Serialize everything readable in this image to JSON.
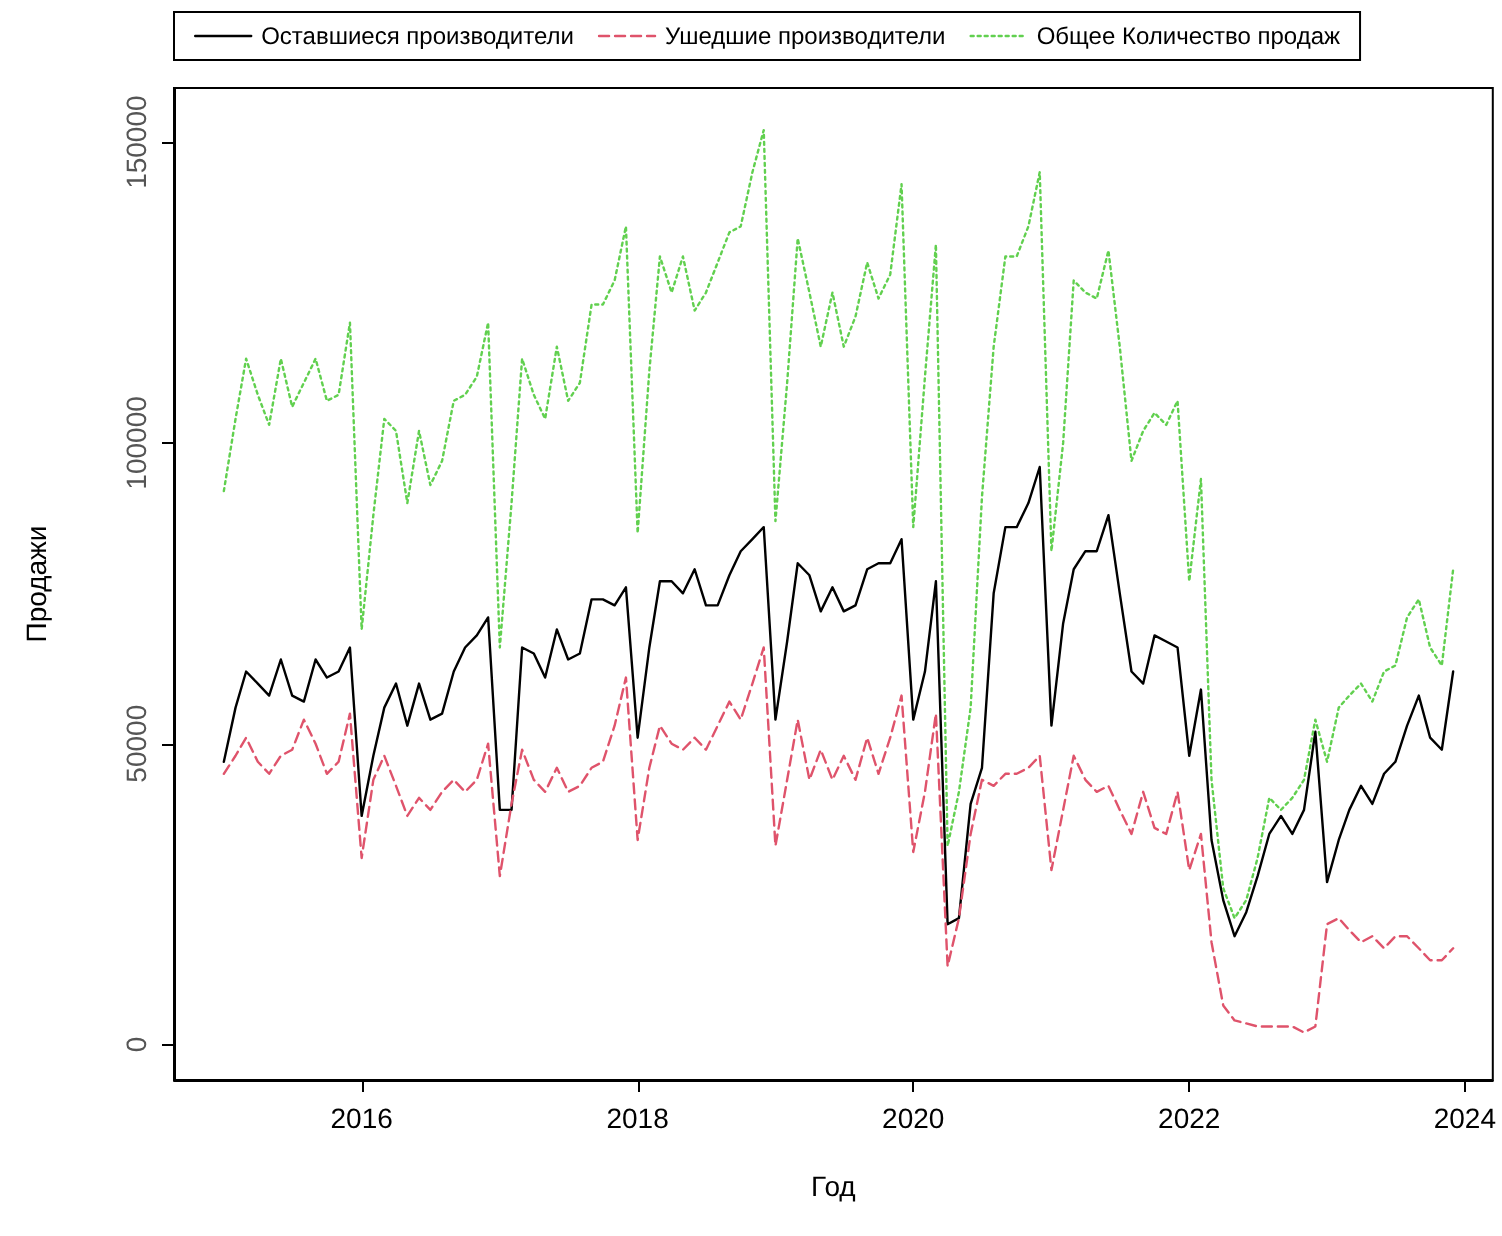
{
  "chart_data": {
    "type": "line",
    "xlabel": "Год",
    "ylabel": "Продажи",
    "x": [
      "2015-01",
      "2015-02",
      "2015-03",
      "2015-04",
      "2015-05",
      "2015-06",
      "2015-07",
      "2015-08",
      "2015-09",
      "2015-10",
      "2015-11",
      "2015-12",
      "2016-01",
      "2016-02",
      "2016-03",
      "2016-04",
      "2016-05",
      "2016-06",
      "2016-07",
      "2016-08",
      "2016-09",
      "2016-10",
      "2016-11",
      "2016-12",
      "2017-01",
      "2017-02",
      "2017-03",
      "2017-04",
      "2017-05",
      "2017-06",
      "2017-07",
      "2017-08",
      "2017-09",
      "2017-10",
      "2017-11",
      "2017-12",
      "2018-01",
      "2018-02",
      "2018-03",
      "2018-04",
      "2018-05",
      "2018-06",
      "2018-07",
      "2018-08",
      "2018-09",
      "2018-10",
      "2018-11",
      "2018-12",
      "2019-01",
      "2019-02",
      "2019-03",
      "2019-04",
      "2019-05",
      "2019-06",
      "2019-07",
      "2019-08",
      "2019-09",
      "2019-10",
      "2019-11",
      "2019-12",
      "2020-01",
      "2020-02",
      "2020-03",
      "2020-04",
      "2020-05",
      "2020-06",
      "2020-07",
      "2020-08",
      "2020-09",
      "2020-10",
      "2020-11",
      "2020-12",
      "2021-01",
      "2021-02",
      "2021-03",
      "2021-04",
      "2021-05",
      "2021-06",
      "2021-07",
      "2021-08",
      "2021-09",
      "2021-10",
      "2021-11",
      "2021-12",
      "2022-01",
      "2022-02",
      "2022-03",
      "2022-04",
      "2022-05",
      "2022-06",
      "2022-07",
      "2022-08",
      "2022-09",
      "2022-10",
      "2022-11",
      "2022-12",
      "2023-01",
      "2023-02",
      "2023-03",
      "2023-04",
      "2023-05",
      "2023-06",
      "2023-07",
      "2023-08",
      "2023-09",
      "2023-10",
      "2023-11",
      "2023-12"
    ],
    "series": [
      {
        "name": "Оставшиеся производители",
        "color": "#000000",
        "line_style": "solid",
        "values": [
          47000,
          56000,
          62000,
          60000,
          58000,
          64000,
          58000,
          57000,
          64000,
          61000,
          62000,
          66000,
          38000,
          48000,
          56000,
          60000,
          53000,
          60000,
          54000,
          55000,
          62000,
          66000,
          68000,
          71000,
          39000,
          39000,
          66000,
          65000,
          61000,
          69000,
          64000,
          65000,
          74000,
          74000,
          73000,
          76000,
          51000,
          66000,
          77000,
          77000,
          75000,
          79000,
          73000,
          73000,
          78000,
          82000,
          84000,
          86000,
          54000,
          67000,
          80000,
          78000,
          72000,
          76000,
          72000,
          73000,
          79000,
          80000,
          80000,
          84000,
          54000,
          62000,
          77000,
          20000,
          21000,
          40000,
          46000,
          75000,
          86000,
          86000,
          90000,
          96000,
          53000,
          70000,
          79000,
          82000,
          82000,
          88000,
          75000,
          62000,
          60000,
          68000,
          67000,
          66000,
          48000,
          59000,
          34000,
          24000,
          18000,
          22000,
          28000,
          35000,
          38000,
          35000,
          39000,
          52000,
          27000,
          34000,
          39000,
          43000,
          40000,
          45000,
          47000,
          53000,
          58000,
          51000,
          49000,
          62000
        ]
      },
      {
        "name": "Ушедшие производители",
        "color": "#df536b",
        "line_style": "dashed",
        "values": [
          45000,
          48000,
          51000,
          47000,
          45000,
          48000,
          49000,
          54000,
          50000,
          45000,
          47000,
          55000,
          31000,
          44000,
          48000,
          43000,
          38000,
          41000,
          39000,
          42000,
          44000,
          42000,
          44000,
          50000,
          28000,
          40000,
          49000,
          44000,
          42000,
          46000,
          42000,
          43000,
          46000,
          47000,
          53000,
          61000,
          34000,
          46000,
          53000,
          50000,
          49000,
          51000,
          49000,
          53000,
          57000,
          54000,
          60000,
          66000,
          33000,
          44000,
          54000,
          44000,
          49000,
          44000,
          48000,
          44000,
          51000,
          45000,
          51000,
          58000,
          32000,
          42000,
          55000,
          13000,
          21000,
          35000,
          44000,
          43000,
          45000,
          45000,
          46000,
          48000,
          29000,
          39000,
          48000,
          44000,
          42000,
          43000,
          39000,
          35000,
          42000,
          36000,
          35000,
          42000,
          29000,
          35000,
          17000,
          6500,
          4000,
          3500,
          3000,
          3000,
          3000,
          3000,
          2000,
          3000,
          20000,
          21000,
          19000,
          17000,
          18000,
          16000,
          18000,
          18000,
          16000,
          14000,
          14000,
          16000
        ]
      },
      {
        "name": "Общее Количество продаж",
        "color": "#61d04f",
        "line_style": "dotted",
        "values": [
          92000,
          104000,
          114000,
          108000,
          103000,
          114000,
          106000,
          110000,
          114000,
          107000,
          108000,
          120000,
          69000,
          88000,
          104000,
          102000,
          90000,
          102000,
          93000,
          97000,
          107000,
          108000,
          111000,
          120000,
          66000,
          90000,
          114000,
          108000,
          104000,
          116000,
          107000,
          110000,
          123000,
          123000,
          127000,
          136000,
          85000,
          112000,
          131000,
          125000,
          131000,
          122000,
          125000,
          130000,
          135000,
          136000,
          145000,
          152000,
          87000,
          110000,
          134000,
          125000,
          116000,
          125000,
          116000,
          121000,
          130000,
          124000,
          128000,
          143000,
          86000,
          111000,
          133000,
          33000,
          42000,
          56000,
          91000,
          116000,
          131000,
          131000,
          136000,
          145000,
          82000,
          100000,
          127000,
          125000,
          124000,
          132000,
          116000,
          97000,
          102000,
          105000,
          103000,
          107000,
          77000,
          94000,
          44000,
          26000,
          21000,
          24000,
          31000,
          41000,
          39000,
          41000,
          44000,
          54000,
          47000,
          56000,
          58000,
          60000,
          57000,
          62000,
          63000,
          71000,
          74000,
          66000,
          63000,
          79000
        ]
      }
    ],
    "xlim": [
      "2014-08-22",
      "2024-03-15"
    ],
    "xticks": [
      {
        "value": "2016-01-01",
        "label": "2016"
      },
      {
        "value": "2018-01-01",
        "label": "2018"
      },
      {
        "value": "2020-01-01",
        "label": "2020"
      },
      {
        "value": "2022-01-01",
        "label": "2022"
      },
      {
        "value": "2024-01-01",
        "label": "2024"
      }
    ],
    "ylim": [
      -5900,
      159000
    ],
    "yticks": [
      0,
      50000,
      100000,
      150000
    ],
    "grid": false,
    "legend": "top left",
    "marker": "none"
  }
}
